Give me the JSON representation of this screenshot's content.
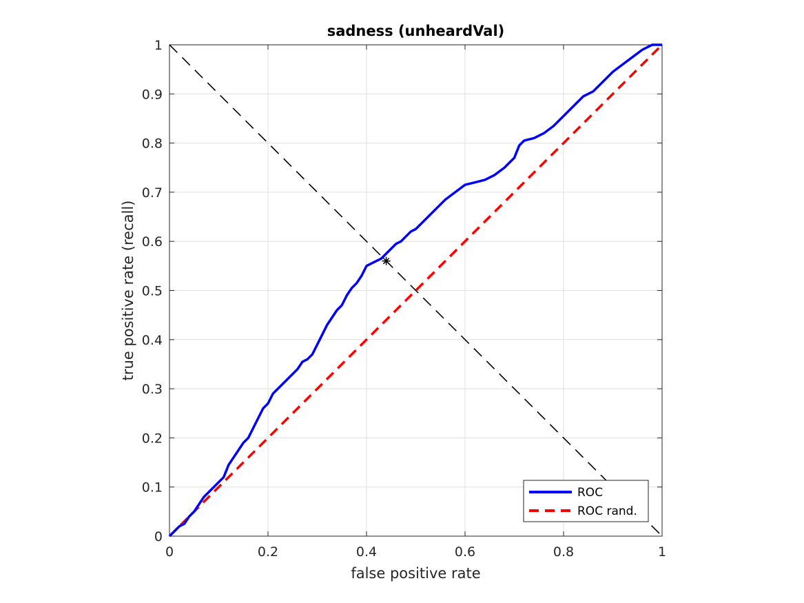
{
  "chart_data": {
    "type": "line",
    "title": "sadness (unheardVal)",
    "xlabel": "false positive rate",
    "ylabel": "true positive rate (recall)",
    "xlim": [
      0,
      1
    ],
    "ylim": [
      0,
      1
    ],
    "xticks": [
      "0",
      "0.2",
      "0.4",
      "0.6",
      "0.8",
      "1"
    ],
    "yticks": [
      "0",
      "0.1",
      "0.2",
      "0.3",
      "0.4",
      "0.5",
      "0.6",
      "0.7",
      "0.8",
      "0.9",
      "1"
    ],
    "xtick_values": [
      0,
      0.2,
      0.4,
      0.6,
      0.8,
      1
    ],
    "ytick_values": [
      0,
      0.1,
      0.2,
      0.3,
      0.4,
      0.5,
      0.6,
      0.7,
      0.8,
      0.9,
      1
    ],
    "grid": true,
    "legend_position": "bottom-right",
    "series": [
      {
        "name": "ROC",
        "color": "#0000ff",
        "style": "solid",
        "x": [
          0,
          0.01,
          0.02,
          0.03,
          0.04,
          0.05,
          0.06,
          0.07,
          0.08,
          0.09,
          0.1,
          0.11,
          0.12,
          0.13,
          0.14,
          0.15,
          0.16,
          0.17,
          0.18,
          0.19,
          0.2,
          0.21,
          0.22,
          0.23,
          0.24,
          0.25,
          0.26,
          0.27,
          0.28,
          0.29,
          0.3,
          0.31,
          0.32,
          0.33,
          0.34,
          0.35,
          0.36,
          0.37,
          0.38,
          0.39,
          0.4,
          0.41,
          0.42,
          0.43,
          0.44,
          0.45,
          0.46,
          0.47,
          0.48,
          0.49,
          0.5,
          0.52,
          0.54,
          0.56,
          0.58,
          0.6,
          0.62,
          0.64,
          0.65,
          0.66,
          0.68,
          0.7,
          0.71,
          0.72,
          0.74,
          0.76,
          0.78,
          0.8,
          0.82,
          0.84,
          0.86,
          0.88,
          0.9,
          0.92,
          0.94,
          0.96,
          0.97,
          0.98,
          1.0
        ],
        "y": [
          0,
          0.01,
          0.02,
          0.025,
          0.04,
          0.05,
          0.065,
          0.08,
          0.09,
          0.1,
          0.11,
          0.12,
          0.145,
          0.16,
          0.175,
          0.19,
          0.2,
          0.22,
          0.24,
          0.26,
          0.27,
          0.29,
          0.3,
          0.31,
          0.32,
          0.33,
          0.34,
          0.355,
          0.36,
          0.37,
          0.39,
          0.41,
          0.43,
          0.445,
          0.46,
          0.47,
          0.49,
          0.505,
          0.515,
          0.53,
          0.55,
          0.555,
          0.56,
          0.565,
          0.575,
          0.585,
          0.595,
          0.6,
          0.61,
          0.62,
          0.625,
          0.645,
          0.665,
          0.685,
          0.7,
          0.715,
          0.72,
          0.725,
          0.73,
          0.735,
          0.75,
          0.77,
          0.795,
          0.805,
          0.81,
          0.82,
          0.835,
          0.855,
          0.875,
          0.895,
          0.905,
          0.925,
          0.945,
          0.96,
          0.975,
          0.99,
          0.995,
          1.0,
          1.0
        ]
      },
      {
        "name": "ROC rand.",
        "color": "#ff0000",
        "style": "dashed",
        "x": [
          0,
          1
        ],
        "y": [
          0,
          1
        ]
      }
    ],
    "reference_line": {
      "color": "#000000",
      "style": "dashed",
      "x": [
        0,
        1
      ],
      "y": [
        1,
        0
      ]
    },
    "marker": {
      "symbol": "asterisk",
      "x": 0.44,
      "y": 0.56,
      "color": "#000000"
    }
  }
}
